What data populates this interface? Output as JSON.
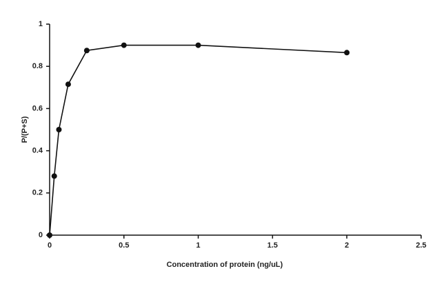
{
  "chart_data": {
    "type": "line",
    "x_label": "Concentration of protein (ng/uL)",
    "y_label": "P/(P+S)",
    "x": [
      0,
      0.03125,
      0.0625,
      0.125,
      0.25,
      0.5,
      1,
      2
    ],
    "series": [
      {
        "color": "#111111",
        "values": [
          0,
          0.28,
          0.5,
          0.715,
          0.875,
          0.9,
          0.9,
          0.865
        ]
      }
    ],
    "xlim": [
      0,
      2.5
    ],
    "xticks": [
      0,
      0.5,
      1,
      1.5,
      2,
      2.5
    ],
    "ylim": [
      0,
      1
    ],
    "yticks": [
      0,
      0.2,
      0.4,
      0.6,
      0.8,
      1
    ],
    "grid": false
  }
}
